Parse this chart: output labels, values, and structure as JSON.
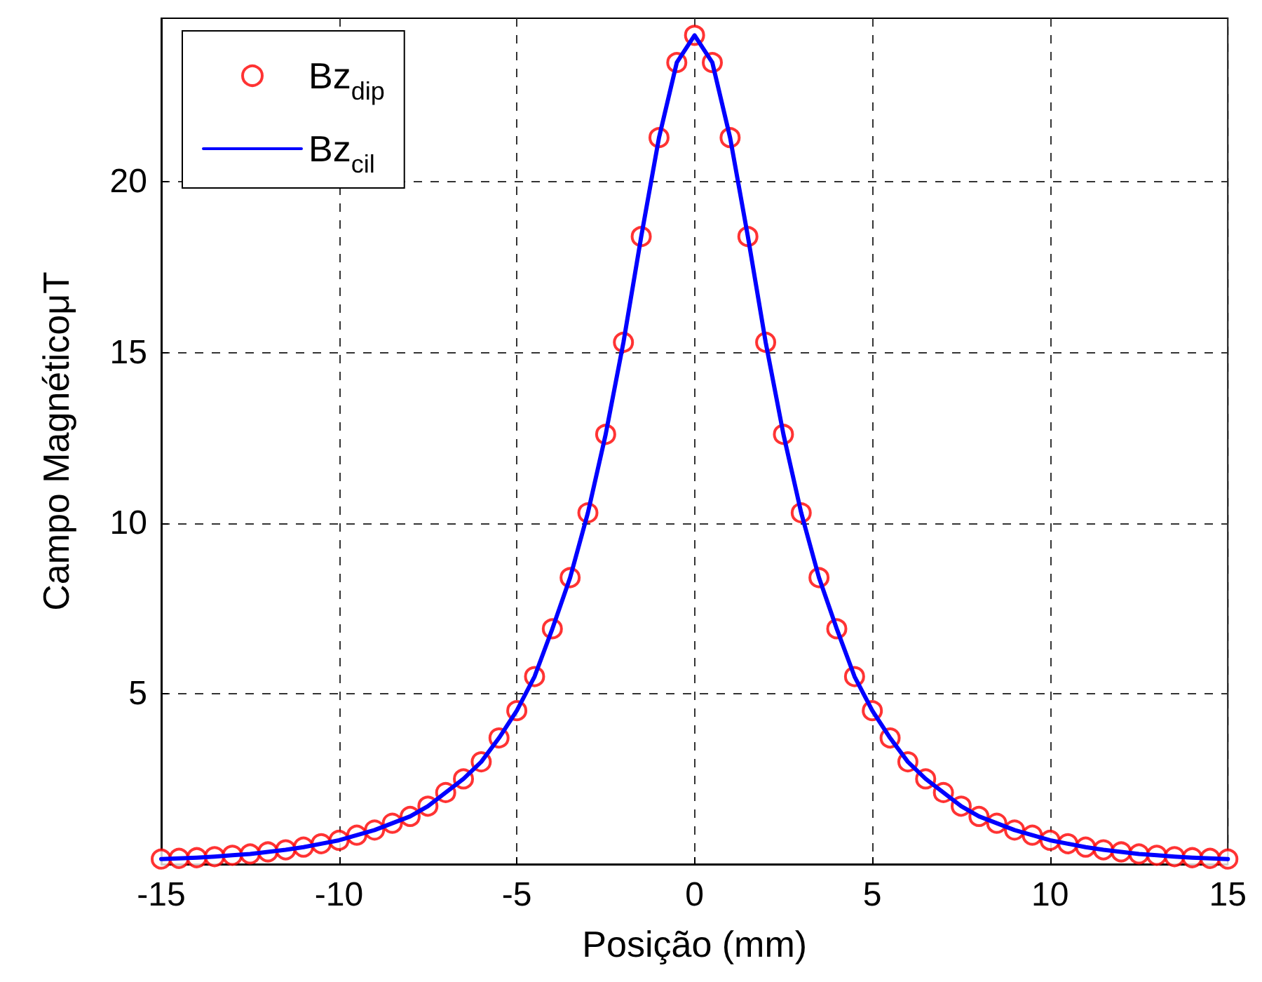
{
  "chart_data": {
    "type": "line",
    "xlabel": "Posição (mm)",
    "ylabel": "Campo MagnéticoμT",
    "x": [
      -15,
      -14.5,
      -14,
      -13.5,
      -13,
      -12.5,
      -12,
      -11.5,
      -11,
      -10.5,
      -10,
      -9.5,
      -9,
      -8.5,
      -8,
      -7.5,
      -7,
      -6.5,
      -6,
      -5.5,
      -5,
      -4.5,
      -4,
      -3.5,
      -3,
      -2.5,
      -2,
      -1.5,
      -1,
      -0.5,
      0,
      0.5,
      1,
      1.5,
      2,
      2.5,
      3,
      3.5,
      4,
      4.5,
      5,
      5.5,
      6,
      6.5,
      7,
      7.5,
      8,
      8.5,
      9,
      9.5,
      10,
      10.5,
      11,
      11.5,
      12,
      12.5,
      13,
      13.5,
      14,
      14.5,
      15
    ],
    "series": [
      {
        "name": "Bz$_{dip}$",
        "type": "scatter",
        "marker": "circle",
        "color": "#ff0000",
        "values": [
          0.15,
          0.17,
          0.19,
          0.22,
          0.26,
          0.3,
          0.36,
          0.42,
          0.5,
          0.6,
          0.7,
          0.85,
          1.0,
          1.2,
          1.4,
          1.7,
          2.1,
          2.5,
          3.0,
          3.7,
          4.5,
          5.5,
          6.9,
          8.4,
          10.3,
          12.6,
          15.3,
          18.4,
          21.3,
          23.5,
          24.3,
          23.5,
          21.3,
          18.4,
          15.3,
          12.6,
          10.3,
          8.4,
          6.9,
          5.5,
          4.5,
          3.7,
          3.0,
          2.5,
          2.1,
          1.7,
          1.4,
          1.2,
          1.0,
          0.85,
          0.7,
          0.6,
          0.5,
          0.42,
          0.36,
          0.3,
          0.26,
          0.22,
          0.19,
          0.17,
          0.15
        ]
      },
      {
        "name": "Bz$_{cil}$",
        "marker": "none",
        "color": "#0000ff",
        "values": [
          0.15,
          0.17,
          0.19,
          0.22,
          0.26,
          0.3,
          0.36,
          0.42,
          0.5,
          0.6,
          0.7,
          0.85,
          1.0,
          1.2,
          1.4,
          1.7,
          2.1,
          2.5,
          3.0,
          3.7,
          4.5,
          5.5,
          6.9,
          8.4,
          10.3,
          12.6,
          15.3,
          18.4,
          21.3,
          23.5,
          24.3,
          23.5,
          21.3,
          18.4,
          15.3,
          12.6,
          10.3,
          8.4,
          6.9,
          5.5,
          4.5,
          3.7,
          3.0,
          2.5,
          2.1,
          1.7,
          1.4,
          1.2,
          1.0,
          0.85,
          0.7,
          0.6,
          0.5,
          0.42,
          0.36,
          0.3,
          0.26,
          0.22,
          0.19,
          0.17,
          0.15
        ]
      }
    ],
    "xlim": [
      -15,
      15
    ],
    "xticks": [
      -15,
      -10,
      -5,
      0,
      5,
      10,
      15
    ],
    "ylim": [
      0,
      24.8
    ],
    "yticks": [
      5,
      10,
      15,
      20
    ],
    "grid": true,
    "legend": "top left"
  }
}
